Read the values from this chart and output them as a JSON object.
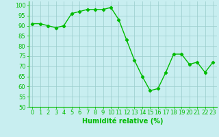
{
  "x": [
    0,
    1,
    2,
    3,
    4,
    5,
    6,
    7,
    8,
    9,
    10,
    11,
    12,
    13,
    14,
    15,
    16,
    17,
    18,
    19,
    20,
    21,
    22,
    23
  ],
  "y": [
    91,
    91,
    90,
    89,
    90,
    96,
    97,
    98,
    98,
    98,
    99,
    93,
    83,
    73,
    65,
    58,
    59,
    67,
    76,
    76,
    71,
    72,
    67,
    72
  ],
  "line_color": "#00bb00",
  "marker": "D",
  "marker_size": 2.2,
  "line_width": 1.0,
  "bg_color": "#c8eef0",
  "grid_color": "#99cccc",
  "xlabel": "Humidité relative (%)",
  "xlabel_color": "#00bb00",
  "xlabel_fontsize": 7,
  "tick_color": "#00bb00",
  "tick_fontsize": 6,
  "ylim": [
    50,
    102
  ],
  "yticks": [
    50,
    55,
    60,
    65,
    70,
    75,
    80,
    85,
    90,
    95,
    100
  ],
  "xlim": [
    -0.5,
    23.5
  ]
}
